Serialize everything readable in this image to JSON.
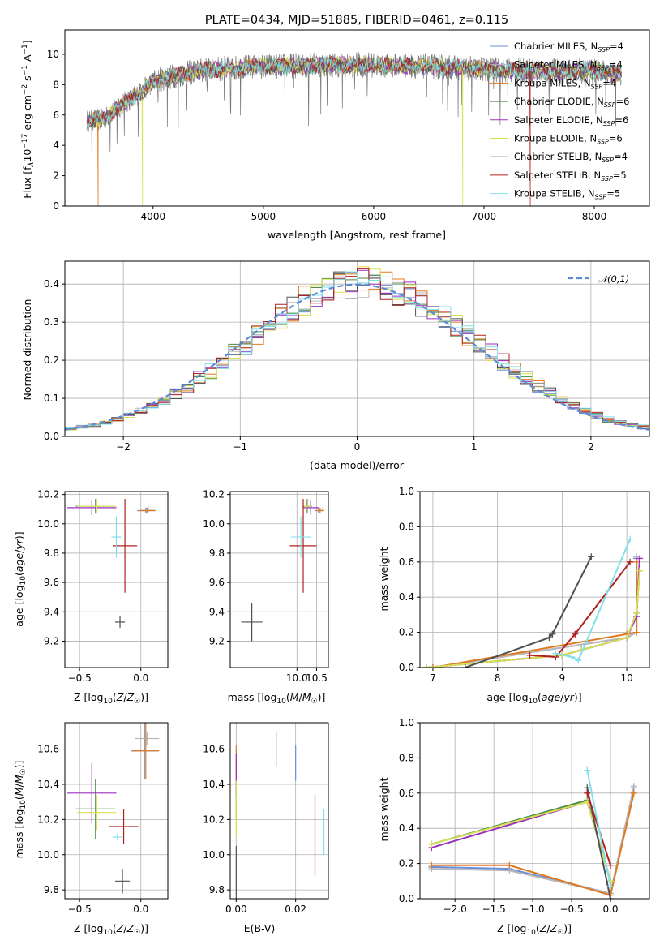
{
  "title": "PLATE=0434, MJD=51885, FIBERID=0461, z=0.115",
  "colors": {
    "Chabrier MILES": "#6a8fd8",
    "Salpeter MILES": "#b8b8b8",
    "Kroupa MILES": "#e07820",
    "Chabrier ELODIE": "#4a8a4a",
    "Salpeter ELODIE": "#9b30c0",
    "Kroupa ELODIE": "#d8e050",
    "Chabrier STELIB": "#505050",
    "Salpeter STELIB": "#b02020",
    "Kroupa STELIB": "#80e0e8"
  },
  "chart_data": [
    {
      "id": "spectrum",
      "type": "line",
      "title": "PLATE=0434, MJD=51885, FIBERID=0461, z=0.115",
      "xlabel": "wavelength [Angstrom, rest frame]",
      "ylabel": "Flux [f_λ10^-17 erg cm^-2 s^-1 A^-1]",
      "xlim": [
        3200,
        8500
      ],
      "ylim": [
        0,
        11.6
      ],
      "xticks": [
        4000,
        5000,
        6000,
        7000,
        8000
      ],
      "yticks": [
        0,
        2,
        4,
        6,
        8,
        10
      ],
      "legend_position": "right",
      "legend": [
        "Chabrier MILES, N_SSP=4",
        "Salpeter MILES, N_SSP=4",
        "Kroupa MILES, N_SSP=4",
        "Chabrier ELODIE, N_SSP=6",
        "Salpeter ELODIE, N_SSP=6",
        "Kroupa ELODIE, N_SSP=6",
        "Chabrier STELIB, N_SSP=4",
        "Salpeter STELIB, N_SSP=5",
        "Kroupa STELIB, N_SSP=5"
      ],
      "continuum_x": [
        3400,
        3550,
        3700,
        3850,
        4000,
        4200,
        4500,
        5000,
        5500,
        6000,
        6500,
        7000,
        7500,
        8000,
        8250
      ],
      "continuum_y": [
        5.6,
        5.7,
        6.6,
        7.3,
        8.2,
        8.6,
        9.0,
        9.2,
        9.3,
        9.3,
        9.2,
        9.0,
        8.9,
        8.9,
        8.7
      ],
      "drops": [
        {
          "series": "Kroupa MILES",
          "x": 3500
        },
        {
          "series": "Kroupa ELODIE",
          "x": 3905
        },
        {
          "series": "Kroupa ELODIE",
          "x": 6810
        },
        {
          "series": "Salpeter STELIB",
          "x": 7420
        }
      ]
    },
    {
      "id": "residuals",
      "type": "histogram",
      "xlabel": "(data-model)/error",
      "ylabel": "Normed distribution",
      "xlim": [
        -2.5,
        2.5
      ],
      "ylim": [
        0,
        0.46
      ],
      "xticks": [
        -2,
        -1,
        0,
        1,
        2
      ],
      "yticks": [
        0.0,
        0.1,
        0.2,
        0.3,
        0.4
      ],
      "legend": [
        "𝒩(0,1)"
      ],
      "legend_position": "top-right",
      "bin_width": 0.1
    },
    {
      "id": "age_vs_Z",
      "type": "errorbar",
      "xlabel": "Z [log10(Z/Z_sun)]",
      "ylabel": "age  [log10(age/yr)]",
      "xlim": [
        -0.62,
        0.22
      ],
      "ylim": [
        9.02,
        10.22
      ],
      "xticks": [
        -0.5,
        0.0
      ],
      "yticks": [
        9.2,
        9.4,
        9.6,
        9.8,
        10.0,
        10.2
      ],
      "points": [
        {
          "series": "Chabrier MILES",
          "x": 0.04,
          "y": 10.09,
          "xerr": 0.07,
          "yerr": 0.02
        },
        {
          "series": "Salpeter MILES",
          "x": 0.06,
          "y": 10.1,
          "xerr": 0.06,
          "yerr": 0.02
        },
        {
          "series": "Kroupa MILES",
          "x": 0.05,
          "y": 10.09,
          "xerr": 0.07,
          "yerr": 0.02
        },
        {
          "series": "Chabrier ELODIE",
          "x": -0.37,
          "y": 10.12,
          "xerr": 0.16,
          "yerr": 0.05
        },
        {
          "series": "Salpeter ELODIE",
          "x": -0.4,
          "y": 10.11,
          "xerr": 0.2,
          "yerr": 0.05
        },
        {
          "series": "Kroupa ELODIE",
          "x": -0.36,
          "y": 10.12,
          "xerr": 0.16,
          "yerr": 0.05
        },
        {
          "series": "Chabrier STELIB",
          "x": -0.17,
          "y": 9.33,
          "xerr": 0.04,
          "yerr": 0.04
        },
        {
          "series": "Salpeter STELIB",
          "x": -0.13,
          "y": 9.85,
          "xerr": 0.1,
          "yerr": 0.32
        },
        {
          "series": "Kroupa STELIB",
          "x": -0.2,
          "y": 9.91,
          "xerr": 0.04,
          "yerr": 0.14
        }
      ]
    },
    {
      "id": "age_vs_mass",
      "type": "errorbar",
      "xlabel": "mass [log10(M/M_sun)]",
      "ylabel": "",
      "xlim": [
        8.3,
        10.8
      ],
      "ylim": [
        9.02,
        10.22
      ],
      "xticks": [
        10.0,
        10.5
      ],
      "yticks": [
        9.2,
        9.4,
        9.6,
        9.8,
        10.0,
        10.2
      ],
      "points": [
        {
          "series": "Chabrier MILES",
          "x": 10.55,
          "y": 10.09,
          "xerr": 0.1,
          "yerr": 0.02
        },
        {
          "series": "Salpeter MILES",
          "x": 10.66,
          "y": 10.1,
          "xerr": 0.08,
          "yerr": 0.02
        },
        {
          "series": "Kroupa MILES",
          "x": 10.59,
          "y": 10.09,
          "xerr": 0.1,
          "yerr": 0.02
        },
        {
          "series": "Chabrier ELODIE",
          "x": 10.26,
          "y": 10.12,
          "xerr": 0.12,
          "yerr": 0.05
        },
        {
          "series": "Salpeter ELODIE",
          "x": 10.35,
          "y": 10.11,
          "xerr": 0.2,
          "yerr": 0.05
        },
        {
          "series": "Kroupa ELODIE",
          "x": 10.24,
          "y": 10.12,
          "xerr": 0.12,
          "yerr": 0.05
        },
        {
          "series": "Chabrier STELIB",
          "x": 8.85,
          "y": 9.33,
          "xerr": 0.27,
          "yerr": 0.13
        },
        {
          "series": "Salpeter STELIB",
          "x": 10.16,
          "y": 9.85,
          "xerr": 0.34,
          "yerr": 0.32
        },
        {
          "series": "Kroupa STELIB",
          "x": 10.1,
          "y": 9.91,
          "xerr": 0.25,
          "yerr": 0.14
        }
      ]
    },
    {
      "id": "weight_vs_age",
      "type": "line",
      "xlabel": "age  [log10(age/yr)]",
      "ylabel": "mass weight",
      "xlim": [
        6.8,
        10.35
      ],
      "ylim": [
        0,
        1
      ],
      "xticks": [
        7,
        8,
        9,
        10
      ],
      "yticks": [
        0.0,
        0.2,
        0.4,
        0.6,
        0.8,
        1.0
      ],
      "series": [
        {
          "name": "Chabrier MILES",
          "x": [
            7.0,
            10.0,
            10.15,
            10.15
          ],
          "y": [
            0.0,
            0.17,
            0.2,
            0.62
          ]
        },
        {
          "name": "Salpeter MILES",
          "x": [
            7.0,
            10.0,
            10.15,
            10.15
          ],
          "y": [
            0.0,
            0.17,
            0.2,
            0.63
          ]
        },
        {
          "name": "Kroupa MILES",
          "x": [
            7.0,
            10.0,
            10.15,
            10.15
          ],
          "y": [
            0.0,
            0.19,
            0.2,
            0.6
          ]
        },
        {
          "name": "Chabrier ELODIE",
          "x": [
            6.9,
            9.0,
            9.3,
            10.0,
            10.15,
            10.2
          ],
          "y": [
            0.0,
            0.07,
            0.1,
            0.17,
            0.31,
            0.55
          ]
        },
        {
          "name": "Salpeter ELODIE",
          "x": [
            6.9,
            9.0,
            9.3,
            10.0,
            10.15,
            10.2
          ],
          "y": [
            0.0,
            0.07,
            0.1,
            0.17,
            0.29,
            0.62
          ]
        },
        {
          "name": "Kroupa ELODIE",
          "x": [
            6.9,
            9.0,
            9.3,
            10.0,
            10.15,
            10.2
          ],
          "y": [
            0.0,
            0.07,
            0.1,
            0.17,
            0.31,
            0.55
          ]
        },
        {
          "name": "Chabrier STELIB",
          "x": [
            7.5,
            8.8,
            8.85,
            9.45
          ],
          "y": [
            0.0,
            0.17,
            0.19,
            0.63
          ]
        },
        {
          "name": "Salpeter STELIB",
          "x": [
            8.5,
            8.9,
            9.2,
            10.05
          ],
          "y": [
            0.07,
            0.06,
            0.19,
            0.6
          ]
        },
        {
          "name": "Kroupa STELIB",
          "x": [
            8.9,
            9.15,
            9.25,
            10.05
          ],
          "y": [
            0.08,
            0.06,
            0.04,
            0.73
          ]
        }
      ]
    },
    {
      "id": "mass_vs_Z",
      "type": "errorbar",
      "xlabel": "Z [log10(Z/Z_sun)]",
      "ylabel": "mass [log10(M/M_sun)]",
      "xlim": [
        -0.62,
        0.22
      ],
      "ylim": [
        9.75,
        10.75
      ],
      "xticks": [
        -0.5,
        0.0
      ],
      "yticks": [
        9.8,
        10.0,
        10.2,
        10.4,
        10.6
      ],
      "points": [
        {
          "series": "Chabrier MILES",
          "x": 0.03,
          "y": 10.59,
          "xerr": 0.11,
          "yerr": 0.16
        },
        {
          "series": "Salpeter MILES",
          "x": 0.05,
          "y": 10.66,
          "xerr": 0.1,
          "yerr": 0.04
        },
        {
          "series": "Kroupa MILES",
          "x": 0.04,
          "y": 10.59,
          "xerr": 0.11,
          "yerr": 0.16
        },
        {
          "series": "Chabrier ELODIE",
          "x": -0.37,
          "y": 10.26,
          "xerr": 0.16,
          "yerr": 0.17
        },
        {
          "series": "Salpeter ELODIE",
          "x": -0.4,
          "y": 10.35,
          "xerr": 0.2,
          "yerr": 0.17
        },
        {
          "series": "Kroupa ELODIE",
          "x": -0.36,
          "y": 10.24,
          "xerr": 0.16,
          "yerr": 0.1
        },
        {
          "series": "Chabrier STELIB",
          "x": -0.15,
          "y": 9.85,
          "xerr": 0.06,
          "yerr": 0.07
        },
        {
          "series": "Salpeter STELIB",
          "x": -0.14,
          "y": 10.16,
          "xerr": 0.12,
          "yerr": 0.1
        },
        {
          "series": "Kroupa STELIB",
          "x": -0.19,
          "y": 10.1,
          "xerr": 0.04,
          "yerr": 0.02
        }
      ]
    },
    {
      "id": "mass_vs_ebv",
      "type": "errorbar",
      "xlabel": "E(B-V)",
      "ylabel": "",
      "xlim": [
        -0.002,
        0.031
      ],
      "ylim": [
        9.75,
        10.75
      ],
      "xticks": [
        0.0,
        0.02
      ],
      "yticks": [
        9.8,
        10.0,
        10.2,
        10.4,
        10.6
      ],
      "points": [
        {
          "series": "Chabrier MILES",
          "x": 0.02,
          "y": 10.52,
          "xerr": 0.0,
          "yerr": 0.1
        },
        {
          "series": "Salpeter MILES",
          "x": 0.0135,
          "y": 10.6,
          "xerr": 0.0,
          "yerr": 0.1
        },
        {
          "series": "Kroupa MILES",
          "x": 0.0,
          "y": 10.5,
          "xerr": 0.0,
          "yerr": 0.12
        },
        {
          "series": "Chabrier ELODIE",
          "x": 0.0,
          "y": 10.3,
          "xerr": 0.0,
          "yerr": 0.1
        },
        {
          "series": "Salpeter ELODIE",
          "x": 0.0,
          "y": 10.45,
          "xerr": 0.0,
          "yerr": 0.12
        },
        {
          "series": "Kroupa ELODIE",
          "x": 0.0,
          "y": 10.26,
          "xerr": 0.0,
          "yerr": 0.16
        },
        {
          "series": "Chabrier STELIB",
          "x": 0.0,
          "y": 9.88,
          "xerr": 0.0,
          "yerr": 0.17
        },
        {
          "series": "Salpeter STELIB",
          "x": 0.0265,
          "y": 10.11,
          "xerr": 0.0,
          "yerr": 0.23
        },
        {
          "series": "Kroupa STELIB",
          "x": 0.0295,
          "y": 10.13,
          "xerr": 0.0,
          "yerr": 0.13
        }
      ]
    },
    {
      "id": "weight_vs_Z",
      "type": "line",
      "xlabel": "Z [log10(Z/Z_sun)]",
      "ylabel": "mass weight",
      "xlim": [
        -2.45,
        0.5
      ],
      "ylim": [
        0,
        1
      ],
      "xticks": [
        -2.0,
        -1.5,
        -1.0,
        -0.5,
        0.0
      ],
      "yticks": [
        0.0,
        0.2,
        0.4,
        0.6,
        0.8,
        1.0
      ],
      "series": [
        {
          "name": "Chabrier MILES",
          "x": [
            -2.3,
            -1.3,
            0.0,
            0.3
          ],
          "y": [
            0.18,
            0.17,
            0.03,
            0.63
          ]
        },
        {
          "name": "Salpeter MILES",
          "x": [
            -2.3,
            -1.3,
            0.0,
            0.3
          ],
          "y": [
            0.17,
            0.16,
            0.03,
            0.64
          ]
        },
        {
          "name": "Kroupa MILES",
          "x": [
            -2.3,
            -1.3,
            0.0,
            0.3
          ],
          "y": [
            0.19,
            0.19,
            0.02,
            0.6
          ]
        },
        {
          "name": "Chabrier ELODIE",
          "x": [
            -2.3,
            -0.3,
            0.0
          ],
          "y": [
            0.31,
            0.56,
            0.1
          ]
        },
        {
          "name": "Salpeter ELODIE",
          "x": [
            -2.3,
            -0.3,
            0.0
          ],
          "y": [
            0.29,
            0.55,
            0.1
          ]
        },
        {
          "name": "Kroupa ELODIE",
          "x": [
            -2.3,
            -0.3,
            0.0
          ],
          "y": [
            0.31,
            0.55,
            0.1
          ]
        },
        {
          "name": "Chabrier STELIB",
          "x": [
            -0.3,
            0.0
          ],
          "y": [
            0.63,
            0.0
          ]
        },
        {
          "name": "Salpeter STELIB",
          "x": [
            -0.3,
            0.0
          ],
          "y": [
            0.6,
            0.19
          ]
        },
        {
          "name": "Kroupa STELIB",
          "x": [
            -0.3,
            0.0
          ],
          "y": [
            0.73,
            0.07
          ]
        }
      ]
    }
  ]
}
